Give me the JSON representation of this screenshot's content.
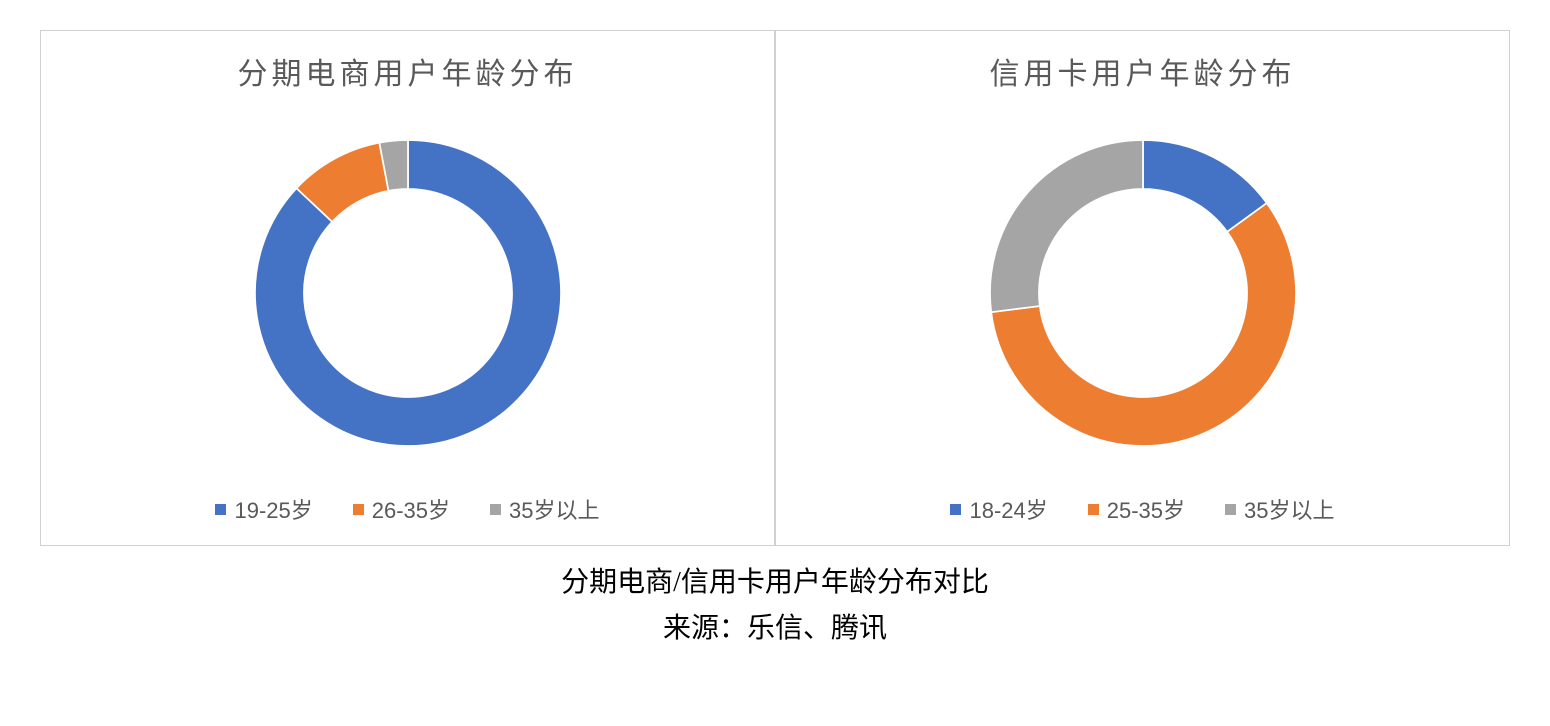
{
  "colors": {
    "blue": "#4472c4",
    "orange": "#ed7d31",
    "gray": "#a5a5a5",
    "border": "#d0d0d0",
    "title_text": "#595959",
    "legend_text": "#595959",
    "caption_text": "#000000",
    "background": "#ffffff"
  },
  "charts": [
    {
      "title": "分期电商用户年龄分布",
      "type": "donut",
      "donut_inner_ratio": 0.68,
      "start_angle_deg": 0,
      "title_fontsize": 30,
      "segments": [
        {
          "label": "19-25岁",
          "value": 87,
          "color": "#4472c4"
        },
        {
          "label": "26-35岁",
          "value": 10,
          "color": "#ed7d31"
        },
        {
          "label": "35岁以上",
          "value": 3,
          "color": "#a5a5a5"
        }
      ]
    },
    {
      "title": "信用卡用户年龄分布",
      "type": "donut",
      "donut_inner_ratio": 0.68,
      "start_angle_deg": 0,
      "title_fontsize": 30,
      "segments": [
        {
          "label": "18-24岁",
          "value": 15,
          "color": "#4472c4"
        },
        {
          "label": "25-35岁",
          "value": 58,
          "color": "#ed7d31"
        },
        {
          "label": "35岁以上",
          "value": 27,
          "color": "#a5a5a5"
        }
      ]
    }
  ],
  "legend_fontsize": 22,
  "legend_swatch_size": 11,
  "caption": {
    "line1": "分期电商/信用卡用户年龄分布对比",
    "line2": "来源：乐信、腾讯",
    "fontsize": 28,
    "font_family": "SimSun"
  }
}
